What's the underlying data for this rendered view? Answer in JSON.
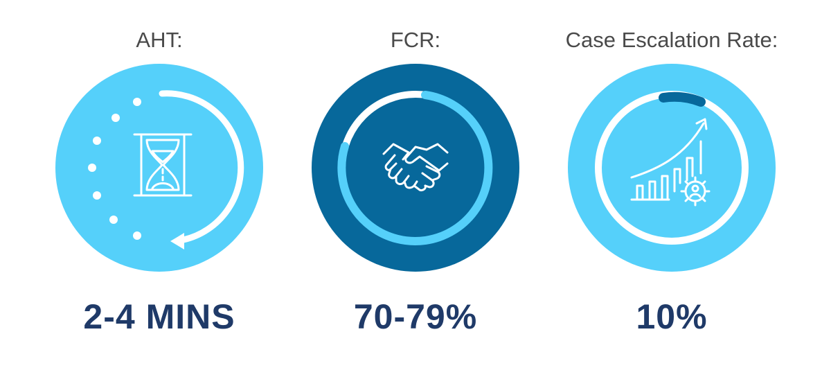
{
  "colors": {
    "light_blue": "#55d0fa",
    "dark_blue": "#07689b",
    "navy_text": "#1f3a68",
    "label_gray": "#4a4a4a",
    "white": "#ffffff"
  },
  "metrics": [
    {
      "label": "AHT:",
      "value": "2-4 MINS",
      "icon": "hourglass-icon"
    },
    {
      "label": "FCR:",
      "value": "70-79%",
      "icon": "handshake-icon"
    },
    {
      "label": "Case Escalation Rate:",
      "value": "10%",
      "icon": "growth-chart-gear-icon"
    }
  ]
}
